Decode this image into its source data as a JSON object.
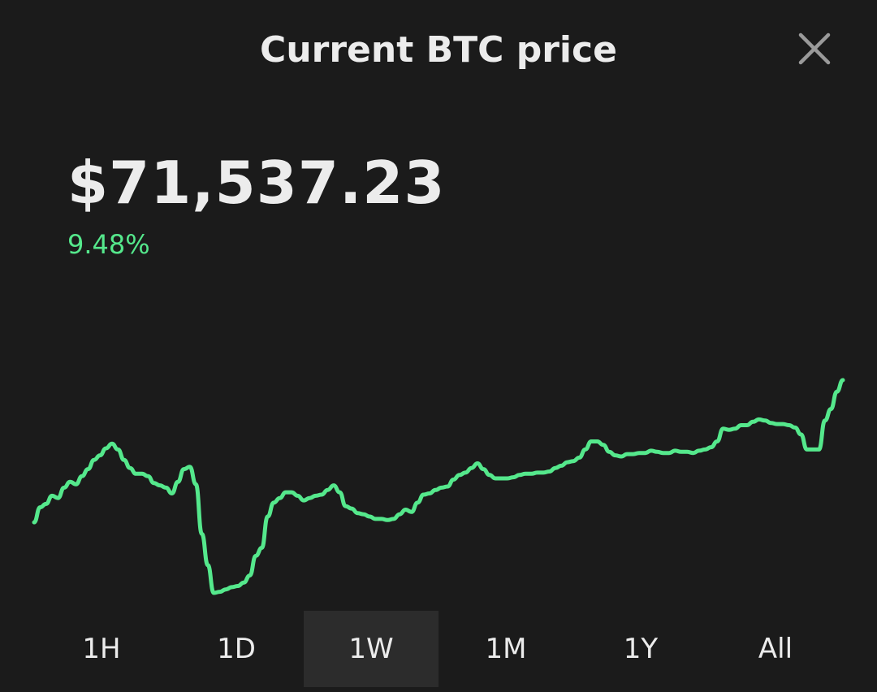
{
  "header": {
    "title": "Current BTC price",
    "close_icon": "close-icon"
  },
  "price": {
    "value": "$71,537.23",
    "change": "9.48%",
    "change_color": "#55e88c"
  },
  "chart_data": {
    "type": "line",
    "grid": false,
    "line_color": "#55e88c",
    "values": [
      642,
      655,
      658,
      665,
      663,
      672,
      677,
      675,
      682,
      688,
      696,
      700,
      706,
      710,
      705,
      696,
      689,
      684,
      684,
      682,
      676,
      674,
      672,
      667,
      677,
      688,
      690,
      675,
      632,
      605,
      581,
      582,
      584,
      586,
      587,
      590,
      596,
      613,
      620,
      647,
      659,
      663,
      668,
      668,
      665,
      661,
      663,
      665,
      666,
      670,
      674,
      668,
      656,
      654,
      650,
      649,
      647,
      645,
      645,
      644,
      645,
      649,
      653,
      651,
      659,
      666,
      667,
      670,
      672,
      673,
      679,
      683,
      685,
      689,
      693,
      688,
      683,
      680,
      680,
      680,
      681,
      683,
      684,
      684,
      685,
      685,
      686,
      689,
      691,
      694,
      695,
      698,
      705,
      712,
      712,
      709,
      703,
      700,
      699,
      701,
      701,
      702,
      702,
      704,
      703,
      702,
      702,
      704,
      703,
      703,
      702,
      704,
      705,
      707,
      712,
      723,
      722,
      723,
      726,
      726,
      729,
      731,
      730,
      728,
      727,
      727,
      726,
      724,
      718,
      705,
      705,
      705,
      730,
      740,
      755,
      765
    ]
  },
  "ranges": [
    {
      "label": "1H",
      "active": false
    },
    {
      "label": "1D",
      "active": false
    },
    {
      "label": "1W",
      "active": true
    },
    {
      "label": "1M",
      "active": false
    },
    {
      "label": "1Y",
      "active": false
    },
    {
      "label": "All",
      "active": false
    }
  ]
}
